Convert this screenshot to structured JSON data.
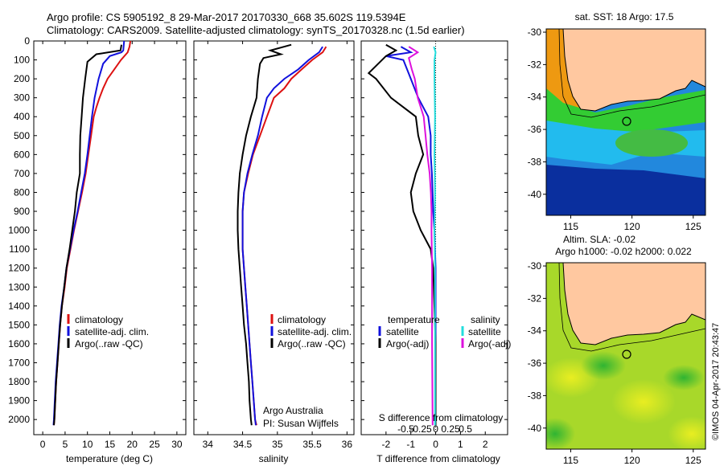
{
  "titles": {
    "line1": "Argo profile: CS 5905192_8 29-Mar-2017 20170330_668 35.602S 119.5394E",
    "line2": "Climatology: CARS2009. Satellite-adjusted climatology: synTS_20170328.nc (1.5d earlier)"
  },
  "credit": "©IMOS 04-Apr-2017 20:43:47",
  "colors": {
    "clim": "#dd1111",
    "sat": "#1111dd",
    "argo": "#000000",
    "sat_sal": "#22dddd",
    "argo_sal": "#dd11dd"
  },
  "chart_data": [
    {
      "type": "line",
      "name": "temperature",
      "xlabel": "temperature (deg C)",
      "ylabel": "",
      "xlim": [
        -2,
        32
      ],
      "ylim": [
        0,
        2080
      ],
      "xticks": [
        "0",
        "5",
        "10",
        "15",
        "20",
        "25",
        "30"
      ],
      "yticks": [
        "0",
        "100",
        "200",
        "300",
        "400",
        "500",
        "600",
        "700",
        "800",
        "900",
        "1000",
        "1100",
        "1200",
        "1300",
        "1400",
        "1500",
        "1600",
        "1700",
        "1800",
        "1900",
        "2000"
      ],
      "legend": [
        "climatology",
        "satellite-adj. clim.",
        "Argo(..raw -QC)"
      ],
      "series": [
        {
          "name": "climatology",
          "color": "#dd1111",
          "points": [
            [
              19.6,
              0
            ],
            [
              19.4,
              30
            ],
            [
              19.0,
              60
            ],
            [
              17.5,
              100
            ],
            [
              16.0,
              150
            ],
            [
              14.5,
              200
            ],
            [
              13.5,
              250
            ],
            [
              12.7,
              300
            ],
            [
              12.0,
              350
            ],
            [
              11.4,
              400
            ],
            [
              10.8,
              500
            ],
            [
              10.2,
              600
            ],
            [
              9.6,
              700
            ],
            [
              8.8,
              800
            ],
            [
              7.9,
              900
            ],
            [
              7.0,
              1000
            ],
            [
              6.2,
              1100
            ],
            [
              5.4,
              1200
            ],
            [
              4.9,
              1300
            ],
            [
              4.3,
              1400
            ],
            [
              3.9,
              1500
            ],
            [
              3.6,
              1600
            ],
            [
              3.3,
              1700
            ],
            [
              3.0,
              1800
            ],
            [
              2.8,
              1900
            ],
            [
              2.6,
              2000
            ],
            [
              2.5,
              2030
            ]
          ]
        },
        {
          "name": "satellite-adj. clim.",
          "color": "#1111dd",
          "points": [
            [
              18.2,
              0
            ],
            [
              18.0,
              50
            ],
            [
              17.6,
              60
            ],
            [
              15.0,
              80
            ],
            [
              13.5,
              120
            ],
            [
              12.5,
              200
            ],
            [
              11.6,
              300
            ],
            [
              11.0,
              400
            ],
            [
              10.5,
              500
            ],
            [
              10.0,
              600
            ],
            [
              9.4,
              700
            ],
            [
              8.6,
              800
            ],
            [
              7.8,
              900
            ],
            [
              6.9,
              1000
            ],
            [
              6.1,
              1100
            ],
            [
              5.3,
              1200
            ],
            [
              4.8,
              1300
            ],
            [
              4.2,
              1400
            ],
            [
              3.8,
              1500
            ],
            [
              3.5,
              1600
            ],
            [
              3.2,
              1700
            ],
            [
              2.9,
              1800
            ],
            [
              2.7,
              1900
            ],
            [
              2.5,
              2000
            ],
            [
              2.4,
              2030
            ]
          ]
        },
        {
          "name": "Argo(..raw -QC)",
          "color": "#000000",
          "points": [
            [
              17.6,
              20
            ],
            [
              17.4,
              50
            ],
            [
              12.0,
              70
            ],
            [
              10.0,
              110
            ],
            [
              9.5,
              200
            ],
            [
              9.0,
              300
            ],
            [
              8.7,
              400
            ],
            [
              8.4,
              500
            ],
            [
              8.3,
              600
            ],
            [
              8.3,
              700
            ],
            [
              7.6,
              800
            ],
            [
              7.2,
              900
            ],
            [
              6.6,
              1000
            ],
            [
              6.0,
              1100
            ],
            [
              5.3,
              1200
            ],
            [
              4.8,
              1300
            ],
            [
              4.3,
              1400
            ],
            [
              3.9,
              1500
            ],
            [
              3.6,
              1600
            ],
            [
              3.3,
              1700
            ],
            [
              3.0,
              1800
            ],
            [
              2.8,
              1900
            ],
            [
              2.6,
              2000
            ],
            [
              2.5,
              2030
            ]
          ]
        }
      ]
    },
    {
      "type": "line",
      "name": "salinity",
      "xlabel": "salinity",
      "xlim": [
        33.8,
        36.1
      ],
      "ylim": [
        0,
        2080
      ],
      "xticks": [
        "34",
        "34.5",
        "35",
        "35.5",
        "36"
      ],
      "legend": [
        "climatology",
        "satellite-adj. clim.",
        "Argo(..raw -QC)"
      ],
      "annotation": [
        "Argo Australia",
        "PI: Susan Wijffels"
      ],
      "series": [
        {
          "name": "climatology",
          "color": "#dd1111",
          "points": [
            [
              35.7,
              30
            ],
            [
              35.65,
              60
            ],
            [
              35.5,
              100
            ],
            [
              35.35,
              150
            ],
            [
              35.2,
              200
            ],
            [
              35.1,
              250
            ],
            [
              34.95,
              300
            ],
            [
              34.85,
              400
            ],
            [
              34.75,
              500
            ],
            [
              34.65,
              600
            ],
            [
              34.58,
              700
            ],
            [
              34.52,
              800
            ],
            [
              34.5,
              900
            ],
            [
              34.5,
              1000
            ],
            [
              34.5,
              1100
            ],
            [
              34.52,
              1200
            ],
            [
              34.54,
              1300
            ],
            [
              34.56,
              1400
            ],
            [
              34.58,
              1500
            ],
            [
              34.6,
              1600
            ],
            [
              34.62,
              1700
            ],
            [
              34.64,
              1800
            ],
            [
              34.66,
              1900
            ],
            [
              34.68,
              2000
            ],
            [
              34.7,
              2030
            ]
          ]
        },
        {
          "name": "satellite-adj. clim.",
          "color": "#1111dd",
          "points": [
            [
              35.65,
              30
            ],
            [
              35.6,
              60
            ],
            [
              35.45,
              100
            ],
            [
              35.3,
              150
            ],
            [
              35.1,
              200
            ],
            [
              34.95,
              250
            ],
            [
              34.85,
              300
            ],
            [
              34.78,
              400
            ],
            [
              34.72,
              500
            ],
            [
              34.64,
              600
            ],
            [
              34.57,
              700
            ],
            [
              34.52,
              800
            ],
            [
              34.5,
              900
            ],
            [
              34.5,
              1000
            ],
            [
              34.5,
              1100
            ],
            [
              34.52,
              1200
            ],
            [
              34.54,
              1300
            ],
            [
              34.56,
              1400
            ],
            [
              34.58,
              1500
            ],
            [
              34.6,
              1600
            ],
            [
              34.62,
              1700
            ],
            [
              34.64,
              1800
            ],
            [
              34.66,
              1900
            ],
            [
              34.68,
              2000
            ],
            [
              34.69,
              2030
            ]
          ]
        },
        {
          "name": "Argo(..raw -QC)",
          "color": "#000000",
          "points": [
            [
              35.2,
              20
            ],
            [
              34.9,
              50
            ],
            [
              35.05,
              70
            ],
            [
              34.8,
              90
            ],
            [
              34.75,
              120
            ],
            [
              34.72,
              200
            ],
            [
              34.7,
              300
            ],
            [
              34.62,
              400
            ],
            [
              34.55,
              500
            ],
            [
              34.5,
              600
            ],
            [
              34.46,
              700
            ],
            [
              34.44,
              800
            ],
            [
              34.43,
              900
            ],
            [
              34.43,
              1000
            ],
            [
              34.44,
              1100
            ],
            [
              34.46,
              1200
            ],
            [
              34.48,
              1300
            ],
            [
              34.5,
              1400
            ],
            [
              34.52,
              1500
            ],
            [
              34.55,
              1600
            ],
            [
              34.57,
              1700
            ],
            [
              34.59,
              1800
            ],
            [
              34.6,
              1900
            ],
            [
              34.62,
              2000
            ],
            [
              34.63,
              2030
            ]
          ]
        }
      ]
    },
    {
      "type": "line",
      "name": "differences",
      "xlabel": "T difference from climatology",
      "xlabel_top": "S difference from climatology",
      "xlim_T": [
        -3.0,
        2.9
      ],
      "ylim": [
        0,
        2080
      ],
      "xticks_T": [
        "-2",
        "-1",
        "0",
        "1",
        "2"
      ],
      "xticks_S": [
        "-0.5",
        "-0.25",
        "0",
        "0.25",
        "0.5"
      ],
      "legend_left_title": "temperature",
      "legend_right_title": "salinity",
      "legend": [
        "satellite",
        "Argo(-adj)",
        "satellite",
        "Argo(-adj)"
      ],
      "series": [
        {
          "name": "T satellite",
          "color": "#1111dd",
          "points": [
            [
              -1.4,
              30
            ],
            [
              -1.0,
              60
            ],
            [
              -2.0,
              80
            ],
            [
              -1.3,
              100
            ],
            [
              -1.0,
              200
            ],
            [
              -0.7,
              300
            ],
            [
              -0.3,
              400
            ],
            [
              -0.2,
              500
            ],
            [
              -0.2,
              600
            ],
            [
              -0.15,
              700
            ],
            [
              -0.1,
              900
            ],
            [
              -0.05,
              1000
            ],
            [
              0.0,
              1200
            ],
            [
              0.0,
              1500
            ],
            [
              0.0,
              2030
            ]
          ]
        },
        {
          "name": "T Argo(-adj)",
          "color": "#000000",
          "points": [
            [
              -2.0,
              20
            ],
            [
              -1.6,
              50
            ],
            [
              -2.0,
              80
            ],
            [
              -2.7,
              170
            ],
            [
              -2.4,
              200
            ],
            [
              -1.8,
              300
            ],
            [
              -0.8,
              400
            ],
            [
              -0.7,
              500
            ],
            [
              -0.5,
              600
            ],
            [
              -0.8,
              700
            ],
            [
              -1.0,
              800
            ],
            [
              -0.9,
              900
            ],
            [
              -0.6,
              1000
            ],
            [
              -0.2,
              1100
            ],
            [
              -0.1,
              1200
            ],
            [
              -0.05,
              1400
            ],
            [
              0.0,
              1600
            ],
            [
              0.0,
              2030
            ]
          ]
        },
        {
          "name": "S satellite",
          "color": "#22dddd",
          "points": [
            [
              -0.03,
              30
            ],
            [
              0.0,
              60
            ],
            [
              -0.02,
              100
            ],
            [
              -0.02,
              200
            ],
            [
              -0.01,
              400
            ],
            [
              -0.02,
              600
            ],
            [
              -0.01,
              800
            ],
            [
              -0.02,
              1000
            ],
            [
              -0.01,
              1200
            ],
            [
              -0.01,
              1600
            ],
            [
              -0.01,
              2030
            ]
          ]
        },
        {
          "name": "S Argo(-adj)",
          "color": "#dd11dd",
          "points": [
            [
              -0.45,
              30
            ],
            [
              -0.3,
              60
            ],
            [
              -0.45,
              90
            ],
            [
              -0.4,
              150
            ],
            [
              -0.35,
              200
            ],
            [
              -0.3,
              300
            ],
            [
              -0.2,
              400
            ],
            [
              -0.17,
              500
            ],
            [
              -0.14,
              600
            ],
            [
              -0.1,
              700
            ],
            [
              -0.08,
              800
            ],
            [
              -0.07,
              900
            ],
            [
              -0.07,
              1000
            ],
            [
              -0.06,
              1200
            ],
            [
              -0.06,
              1600
            ],
            [
              -0.05,
              2030
            ]
          ]
        }
      ]
    },
    {
      "type": "heatmap",
      "name": "sst-map",
      "title": "sat. SST: 18 Argo: 17.5",
      "xlim": [
        113,
        126
      ],
      "ylim": [
        -41.3,
        -29.8
      ],
      "xticks": [
        "115",
        "120",
        "125"
      ],
      "yticks": [
        "-30",
        "-32",
        "-34",
        "-36",
        "-38",
        "-40"
      ],
      "marker": [
        119.54,
        -35.6
      ]
    },
    {
      "type": "heatmap",
      "name": "sla-map",
      "title1": "Altim. SLA: -0.02",
      "title2": "Argo h1000: -0.02 h2000: 0.022",
      "xlim": [
        113,
        126
      ],
      "ylim": [
        -41.3,
        -29.8
      ],
      "xticks": [
        "115",
        "120",
        "125"
      ],
      "yticks": [
        "-30",
        "-32",
        "-34",
        "-36",
        "-38",
        "-40"
      ],
      "marker": [
        119.54,
        -35.6
      ]
    }
  ]
}
